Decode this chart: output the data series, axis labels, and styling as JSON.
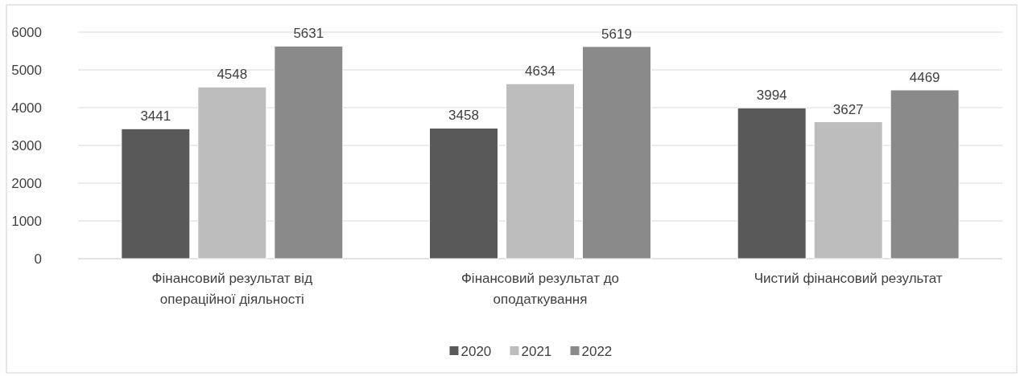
{
  "chart_data": {
    "type": "bar",
    "categories": [
      "Фінансовий результат від операційної діяльності",
      "Фінансовий результат до оподаткування",
      "Чистий фінансовий результат"
    ],
    "series": [
      {
        "name": "2020",
        "color": "#595959",
        "values": [
          3441,
          3458,
          3994
        ]
      },
      {
        "name": "2021",
        "color": "#bdbdbd",
        "values": [
          4548,
          4634,
          3627
        ]
      },
      {
        "name": "2022",
        "color": "#8a8a8a",
        "values": [
          5631,
          5619,
          4469
        ]
      }
    ],
    "ylim": [
      0,
      6000
    ],
    "yticks": [
      0,
      1000,
      2000,
      3000,
      4000,
      5000,
      6000
    ],
    "grid": "y",
    "legend": "bottom",
    "data_labels": true
  }
}
